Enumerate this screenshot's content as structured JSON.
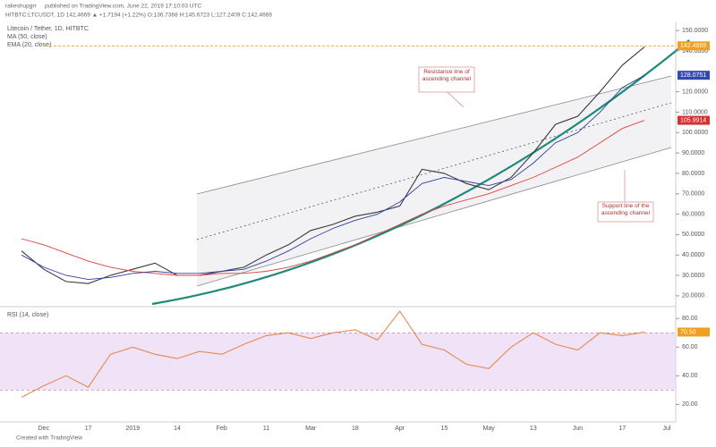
{
  "header": {
    "author": "rakeshupgrr",
    "published": "published on TradingView.com, June 22, 2019 17:10:03 UTC",
    "ticker": "HITBTC:LTCUSDT, 1D  142.4669  ▲ +1.7194 (+1.22%)  O:136.7368  H:145.6723  L:127.2409  C:142.4669"
  },
  "chart_data": [
    {
      "type": "line",
      "title": "Litecoin / Tether, 1D, HITBTC",
      "categories": [
        null,
        "Dec",
        null,
        "17",
        null,
        "2019",
        null,
        "14",
        null,
        "Feb",
        null,
        "11",
        null,
        "Mar",
        null,
        "18",
        null,
        "Apr",
        null,
        "15",
        null,
        "May",
        null,
        "13",
        null,
        "Jun",
        null,
        "17",
        null,
        "Jul"
      ],
      "series": [
        {
          "color": "#3a3a3a",
          "values": [
            42,
            33,
            27,
            26,
            30,
            33,
            36,
            30,
            30,
            32,
            34,
            40,
            45,
            52,
            55,
            59,
            61,
            64,
            82,
            80,
            75,
            72,
            78,
            90,
            104,
            108,
            120,
            133,
            142,
            null
          ]
        },
        {
          "name": "MA (50, close)",
          "color": "#e0433b",
          "values": [
            48,
            45,
            41,
            37,
            34,
            32,
            31,
            30,
            30,
            31,
            31,
            32,
            34,
            37,
            41,
            45,
            50,
            55,
            60,
            64,
            67,
            70,
            74,
            78,
            83,
            88,
            95,
            102,
            106,
            null
          ]
        },
        {
          "name": "EMA (20, close)",
          "color": "#2f3ea0",
          "values": [
            40,
            34,
            30,
            28,
            29,
            31,
            32,
            31,
            31,
            32,
            33,
            37,
            42,
            48,
            53,
            57,
            60,
            66,
            75,
            78,
            76,
            74,
            77,
            85,
            95,
            100,
            110,
            122,
            128,
            null
          ]
        }
      ],
      "ylim": [
        16,
        154
      ],
      "yticks": [
        {
          "value": 20,
          "label": "20.0000"
        },
        {
          "value": 30,
          "label": "30.0000"
        },
        {
          "value": 40,
          "label": "40.0000"
        },
        {
          "value": 50,
          "label": "50.0000"
        },
        {
          "value": 60,
          "label": "60.0000"
        },
        {
          "value": 70,
          "label": "70.0000"
        },
        {
          "value": 80,
          "label": "80.0000"
        },
        {
          "value": 90,
          "label": "90.0000"
        },
        {
          "value": 100,
          "label": "100.0000"
        },
        {
          "value": 110,
          "label": "110.0000"
        },
        {
          "value": 120,
          "label": "120.0000"
        },
        {
          "value": 140,
          "label": "140.0000"
        },
        {
          "value": 150,
          "label": "150.0000"
        }
      ],
      "price_tags": [
        {
          "value": 142.4669,
          "color": "#f0a020"
        },
        {
          "value": 128.0751,
          "color": "#3349b0"
        },
        {
          "value": 105.9914,
          "color": "#d63030"
        }
      ],
      "annotations": [
        "Resistance line of ascending channel",
        "Support line of the ascending channel"
      ]
    },
    {
      "type": "line",
      "title": "RSI (14, close)",
      "series": [
        {
          "color": "#e58a50",
          "values": [
            25,
            33,
            40,
            32,
            55,
            60,
            55,
            52,
            57,
            55,
            62,
            68,
            70,
            66,
            70,
            72,
            65,
            85,
            62,
            58,
            48,
            45,
            60,
            70,
            62,
            58,
            70,
            68,
            70.5,
            null
          ]
        }
      ],
      "ylim": [
        9,
        87
      ],
      "yticks": [
        {
          "value": 20,
          "label": "20.00"
        },
        {
          "value": 40,
          "label": "40.00"
        },
        {
          "value": 60,
          "label": "60.00"
        },
        {
          "value": 80,
          "label": "80.00"
        }
      ],
      "band": [
        30,
        70
      ],
      "price_tags": [
        {
          "value": 70.5,
          "label": "70.50",
          "color": "#f0a020"
        }
      ]
    }
  ],
  "footer": "Created with TradingView"
}
